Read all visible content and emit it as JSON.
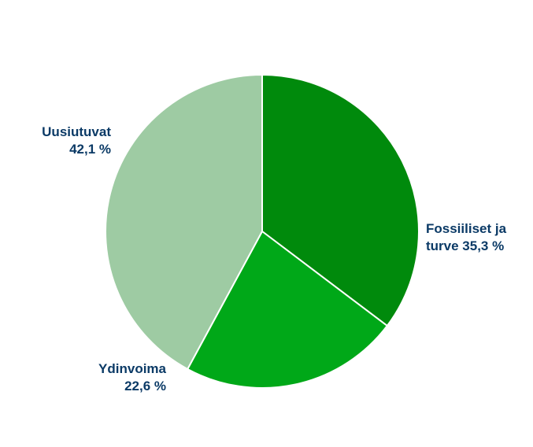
{
  "chart_data": {
    "type": "pie",
    "slices": [
      {
        "label_lines": [
          "Fossiiliset ja",
          "turve 35,3 %"
        ],
        "value": 35.3,
        "color": "#008A0C"
      },
      {
        "label_lines": [
          "Ydinvoima",
          "22,6 %"
        ],
        "value": 22.6,
        "color": "#00A818"
      },
      {
        "label_lines": [
          "Uusiutuvat",
          "42,1 %"
        ],
        "value": 42.1,
        "color": "#9ECBA3"
      }
    ],
    "label_color": "#0B3A66",
    "start": "top",
    "direction": "clockwise"
  }
}
